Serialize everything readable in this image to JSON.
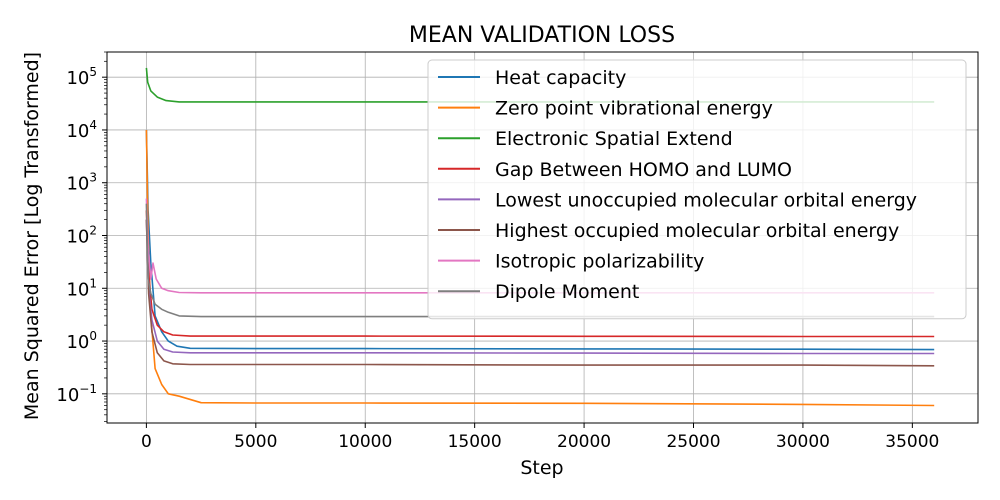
{
  "chart_data": {
    "type": "line",
    "title": "MEAN VALIDATION LOSS",
    "xlabel": "Step",
    "ylabel": "Mean Squared Error [Log Transformed]",
    "xlim": [
      -1800,
      38000
    ],
    "ylim": [
      0.028,
      300000
    ],
    "yscale": "log",
    "grid": true,
    "legend_position": "top-right",
    "x_ticks": [
      0,
      5000,
      10000,
      15000,
      20000,
      25000,
      30000,
      35000
    ],
    "x_tick_labels": [
      "0",
      "5000",
      "10000",
      "15000",
      "20000",
      "25000",
      "30000",
      "35000"
    ],
    "y_ticks": [
      0.1,
      1,
      10,
      100,
      1000,
      10000,
      100000
    ],
    "y_tick_labels": [
      {
        "base": "10",
        "exp": "−1"
      },
      {
        "base": "10",
        "exp": "0"
      },
      {
        "base": "10",
        "exp": "1"
      },
      {
        "base": "10",
        "exp": "2"
      },
      {
        "base": "10",
        "exp": "3"
      },
      {
        "base": "10",
        "exp": "4"
      },
      {
        "base": "10",
        "exp": "5"
      }
    ],
    "series": [
      {
        "name": "Heat capacity",
        "color": "#1f77b4",
        "x": [
          0,
          80,
          200,
          400,
          700,
          1000,
          1400,
          2000,
          5000,
          10000,
          20000,
          30000,
          36000
        ],
        "y": [
          10000,
          300,
          30,
          3,
          1.5,
          1.0,
          0.8,
          0.73,
          0.72,
          0.72,
          0.71,
          0.7,
          0.69
        ]
      },
      {
        "name": "Zero point vibrational energy",
        "color": "#ff7f0e",
        "x": [
          0,
          80,
          200,
          400,
          700,
          1000,
          1500,
          2500,
          5000,
          10000,
          20000,
          30000,
          36000
        ],
        "y": [
          10000,
          100,
          3,
          0.3,
          0.15,
          0.1,
          0.09,
          0.068,
          0.067,
          0.067,
          0.066,
          0.063,
          0.06
        ]
      },
      {
        "name": "Electronic Spatial Extend",
        "color": "#2ca02c",
        "x": [
          0,
          60,
          200,
          500,
          900,
          1500,
          3000,
          10000,
          20000,
          30000,
          36000
        ],
        "y": [
          150000,
          80000,
          55000,
          42000,
          36000,
          34000,
          34000,
          34000,
          34000,
          34000,
          34000
        ]
      },
      {
        "name": "Gap Between HOMO and LUMO",
        "color": "#d62728",
        "x": [
          0,
          100,
          250,
          500,
          800,
          1200,
          2000,
          5000,
          10000,
          20000,
          30000,
          36000
        ],
        "y": [
          300,
          20,
          4,
          2.0,
          1.5,
          1.3,
          1.24,
          1.24,
          1.24,
          1.23,
          1.22,
          1.22
        ]
      },
      {
        "name": "Lowest unoccupied molecular orbital energy",
        "color": "#9467bd",
        "x": [
          0,
          100,
          250,
          500,
          800,
          1200,
          2000,
          5000,
          10000,
          20000,
          30000,
          36000
        ],
        "y": [
          200,
          10,
          2.5,
          1.0,
          0.7,
          0.62,
          0.6,
          0.6,
          0.6,
          0.59,
          0.58,
          0.58
        ]
      },
      {
        "name": "Highest occupied molecular orbital energy",
        "color": "#8c564b",
        "x": [
          0,
          100,
          250,
          500,
          800,
          1200,
          2000,
          5000,
          10000,
          20000,
          30000,
          36000
        ],
        "y": [
          200,
          8,
          1.5,
          0.6,
          0.42,
          0.37,
          0.36,
          0.36,
          0.36,
          0.35,
          0.35,
          0.34
        ]
      },
      {
        "name": "Isotropic polarizability",
        "color": "#e377c2",
        "x": [
          0,
          80,
          200,
          300,
          450,
          700,
          1000,
          1500,
          2500,
          10000,
          20000,
          30000,
          36000
        ],
        "y": [
          500,
          60,
          15,
          30,
          15,
          10,
          9,
          8.3,
          8.2,
          8.2,
          8.2,
          8.2,
          8.2
        ]
      },
      {
        "name": "Dipole Moment",
        "color": "#7f7f7f",
        "x": [
          0,
          80,
          200,
          400,
          700,
          1000,
          1500,
          2500,
          10000,
          20000,
          30000,
          36000
        ],
        "y": [
          400,
          15,
          8,
          5,
          4,
          3.5,
          3.0,
          2.9,
          2.9,
          2.9,
          2.9,
          2.9
        ]
      }
    ]
  }
}
